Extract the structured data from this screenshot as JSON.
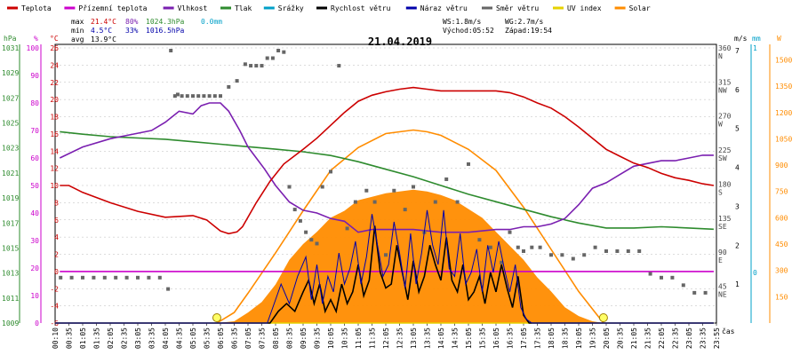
{
  "chart_data": {
    "type": "line",
    "title": "21.04.2019",
    "legend": [
      {
        "name": "Teplota",
        "color": "#cc0000"
      },
      {
        "name": "Přízemní teplota",
        "color": "#cc00cc"
      },
      {
        "name": "Vlhkost",
        "color": "#7a1fb0"
      },
      {
        "name": "Tlak",
        "color": "#2e8b2e"
      },
      {
        "name": "Srážky",
        "color": "#00a0c8"
      },
      {
        "name": "Rychlost větru",
        "color": "#000000"
      },
      {
        "name": "Náraz větru",
        "color": "#0000aa"
      },
      {
        "name": "Směr větru",
        "color": "#666666"
      },
      {
        "name": "UV index",
        "color": "#e6d200"
      },
      {
        "name": "Solar",
        "color": "#ff8c00"
      }
    ],
    "stats": {
      "max_label": "max",
      "min_label": "min",
      "avg_label": "avg",
      "max_temp": "21.4°C",
      "max_hum": "80%",
      "max_press": "1024.3hPa",
      "max_rain": "0.0mm",
      "min_temp": "4.5°C",
      "min_hum": "33%",
      "min_press": "1016.5hPa",
      "avg_temp": "13.9°C",
      "ws": "WS:1.8m/s",
      "wg": "WG:2.7m/s",
      "sunrise": "Východ:05:52",
      "sunset": "Západ:19:54"
    },
    "axes": {
      "hpa_unit": "hPa",
      "hum_unit": "%",
      "temp_unit": "°C",
      "ms_unit": "m/s",
      "mm_unit": "mm",
      "w_unit": "W",
      "x_unit": "čas",
      "hpa_ticks": [
        "1009",
        "1011",
        "1013",
        "1015",
        "1017",
        "1019",
        "1021",
        "1023",
        "1025",
        "1027",
        "1029",
        "1031"
      ],
      "hum_ticks": [
        "0",
        "10",
        "20",
        "30",
        "40",
        "50",
        "60",
        "70",
        "80",
        "90",
        "100"
      ],
      "temp_ticks": [
        "-6",
        "-4",
        "-2",
        "0",
        "2",
        "4",
        "6",
        "8",
        "10",
        "12",
        "14",
        "16",
        "18",
        "20",
        "22",
        "24",
        "26"
      ],
      "dir_ticks": [
        {
          "deg": "45",
          "dir": "NE"
        },
        {
          "deg": "90",
          "dir": "E"
        },
        {
          "deg": "135",
          "dir": "SE"
        },
        {
          "deg": "180",
          "dir": "S"
        },
        {
          "deg": "225",
          "dir": "SW"
        },
        {
          "deg": "270",
          "dir": "W"
        },
        {
          "deg": "315",
          "dir": "NW"
        },
        {
          "deg": "360",
          "dir": "N"
        }
      ],
      "ms_ticks": [
        "1",
        "2",
        "3",
        "4",
        "5",
        "6",
        "7"
      ],
      "mm_ticks": [
        "0",
        "1"
      ],
      "w_ticks": [
        "150",
        "300",
        "450",
        "600",
        "750",
        "900",
        "1050",
        "1200",
        "1350",
        "1500"
      ],
      "x_ticks": [
        "00:10",
        "00:35",
        "01:05",
        "01:35",
        "02:05",
        "02:35",
        "03:05",
        "03:35",
        "04:05",
        "04:35",
        "05:05",
        "05:35",
        "06:05",
        "06:35",
        "07:05",
        "07:35",
        "08:05",
        "08:35",
        "09:05",
        "09:35",
        "10:05",
        "10:35",
        "11:05",
        "11:35",
        "12:05",
        "12:35",
        "13:05",
        "13:35",
        "14:05",
        "14:35",
        "15:05",
        "15:35",
        "16:05",
        "16:35",
        "17:05",
        "17:35",
        "18:05",
        "18:35",
        "19:05",
        "19:35",
        "20:05",
        "20:35",
        "21:05",
        "21:35",
        "22:05",
        "22:35",
        "23:05",
        "23:35",
        "23:55"
      ]
    },
    "sun_events_h": [
      5.87,
      19.9
    ],
    "series": [
      {
        "name": "Teplota",
        "axis": "temp",
        "color": "#cc0000",
        "x": [
          0.17,
          0.5,
          1,
          2,
          3,
          4,
          5,
          5.5,
          6,
          6.3,
          6.6,
          6.8,
          7.3,
          7.8,
          8.3,
          9,
          9.5,
          10,
          10.5,
          11,
          11.5,
          12,
          12.5,
          13,
          13.5,
          14,
          15,
          16,
          16.5,
          17,
          17.5,
          18,
          18.5,
          19,
          19.5,
          20,
          20.5,
          21,
          21.5,
          22,
          22.5,
          23,
          23.5,
          23.9
        ],
        "y": [
          10,
          10,
          9.2,
          8,
          7,
          6.3,
          6.5,
          6,
          4.7,
          4.4,
          4.6,
          5.2,
          8,
          10.5,
          12.5,
          14.2,
          15.5,
          17,
          18.5,
          19.8,
          20.5,
          20.9,
          21.2,
          21.4,
          21.2,
          21,
          21,
          21,
          20.8,
          20.3,
          19.6,
          19,
          18,
          16.8,
          15.5,
          14.2,
          13.4,
          12.6,
          12.1,
          11.4,
          10.9,
          10.6,
          10.2,
          10
        ]
      },
      {
        "name": "Vlhkost",
        "axis": "hum",
        "color": "#7a1fb0",
        "x": [
          0.17,
          1,
          2,
          3,
          3.5,
          4,
          4.5,
          5,
          5.3,
          5.6,
          6,
          6.3,
          6.7,
          7,
          7.3,
          7.6,
          8,
          8.5,
          9,
          9.5,
          10,
          10.5,
          11,
          11.5,
          12,
          13,
          14,
          15,
          16,
          16.5,
          17,
          17.5,
          18,
          18.5,
          19,
          19.5,
          20,
          20.5,
          21,
          21.5,
          22,
          22.5,
          23,
          23.5,
          23.9
        ],
        "y": [
          60,
          64,
          67,
          69,
          70,
          73,
          77,
          76,
          79,
          80,
          80,
          77,
          70,
          64,
          60,
          56,
          50,
          44,
          41,
          40,
          38,
          37,
          33,
          34,
          34,
          34,
          33,
          33,
          34,
          34,
          35,
          35,
          36,
          38,
          43,
          49,
          51,
          54,
          57,
          58,
          59,
          59,
          60,
          61,
          61
        ]
      },
      {
        "name": "Tlak",
        "axis": "hpa",
        "color": "#2e8b2e",
        "x": [
          0.17,
          1,
          2,
          3,
          4,
          5,
          6,
          7,
          8,
          9,
          10,
          11,
          12,
          13,
          14,
          15,
          16,
          17,
          18,
          19,
          20,
          21,
          22,
          23,
          23.9
        ],
        "y": [
          1024.3,
          1024.1,
          1023.9,
          1023.8,
          1023.7,
          1023.5,
          1023.3,
          1023.1,
          1022.9,
          1022.7,
          1022.4,
          1021.9,
          1021.3,
          1020.7,
          1020.0,
          1019.3,
          1018.7,
          1018.1,
          1017.5,
          1017.0,
          1016.6,
          1016.6,
          1016.7,
          1016.6,
          1016.5
        ]
      },
      {
        "name": "Přízemní teplota",
        "axis": "temp",
        "color": "#cc00cc",
        "x": [
          0.17,
          23.9
        ],
        "y": [
          0,
          0
        ]
      },
      {
        "name": "Rychlost větru",
        "axis": "ms",
        "color": "#000000",
        "x": [
          0,
          7.8,
          8.1,
          8.4,
          8.7,
          9,
          9.2,
          9.4,
          9.6,
          9.8,
          10,
          10.2,
          10.4,
          10.6,
          10.8,
          11,
          11.2,
          11.4,
          11.6,
          11.8,
          12,
          12.2,
          12.4,
          12.6,
          12.8,
          13,
          13.2,
          13.4,
          13.6,
          13.8,
          14,
          14.2,
          14.4,
          14.6,
          14.8,
          15,
          15.2,
          15.4,
          15.6,
          15.8,
          16,
          16.2,
          16.4,
          16.6,
          16.8,
          17,
          17.2,
          17.4,
          23.9
        ],
        "y": [
          0,
          0,
          0.3,
          0.5,
          0.3,
          0.8,
          1.1,
          0.5,
          1.0,
          0.3,
          0.6,
          0.3,
          1.0,
          0.5,
          0.8,
          1.5,
          0.7,
          1.1,
          2.5,
          1.3,
          0.9,
          1.0,
          2.0,
          1.3,
          0.6,
          1.6,
          0.8,
          1.2,
          2.0,
          1.5,
          1.1,
          2.2,
          1.1,
          0.8,
          1.5,
          0.6,
          0.8,
          1.2,
          0.5,
          1.3,
          0.8,
          1.5,
          0.9,
          0.4,
          1.2,
          0.2,
          0,
          0,
          0
        ]
      },
      {
        "name": "Náraz větru",
        "axis": "ms",
        "color": "#0000aa",
        "x": [
          0,
          7.7,
          7.9,
          8.2,
          8.5,
          8.8,
          9.1,
          9.3,
          9.5,
          9.7,
          9.9,
          10.1,
          10.3,
          10.5,
          10.7,
          10.9,
          11.1,
          11.3,
          11.5,
          11.7,
          11.9,
          12.1,
          12.3,
          12.5,
          12.7,
          12.9,
          13.1,
          13.3,
          13.5,
          13.7,
          13.9,
          14.1,
          14.3,
          14.5,
          14.7,
          14.9,
          15.1,
          15.3,
          15.5,
          15.7,
          15.9,
          16.1,
          16.3,
          16.5,
          16.7,
          16.9,
          17.1,
          17.3,
          17.5,
          23.9
        ],
        "y": [
          0,
          0,
          0.4,
          1.0,
          0.5,
          1.2,
          1.7,
          0.6,
          1.5,
          0.5,
          1.2,
          0.8,
          1.8,
          1.0,
          1.4,
          2.1,
          1.0,
          1.7,
          2.8,
          2.0,
          1.2,
          1.5,
          2.6,
          1.8,
          0.9,
          2.3,
          1.0,
          1.8,
          2.9,
          2.0,
          1.5,
          2.9,
          1.4,
          1.2,
          2.3,
          1.0,
          1.3,
          1.9,
          0.8,
          2.0,
          1.3,
          2.1,
          1.4,
          0.8,
          1.5,
          0.4,
          0.1,
          0,
          0,
          0
        ]
      },
      {
        "name": "Směr větru",
        "axis": "dir",
        "color": "#666666",
        "style": "scatter",
        "x": [
          0.2,
          0.6,
          1.0,
          1.4,
          1.8,
          2.2,
          2.6,
          3.0,
          3.4,
          3.8,
          4.1,
          4.2,
          4.35,
          4.45,
          4.6,
          4.8,
          5.0,
          5.2,
          5.4,
          5.6,
          5.8,
          6.0,
          6.3,
          6.6,
          6.9,
          7.1,
          7.3,
          7.5,
          7.7,
          7.9,
          8.1,
          8.3,
          8.5,
          8.7,
          8.9,
          9.1,
          9.3,
          9.5,
          9.7,
          10.0,
          10.3,
          10.6,
          10.9,
          11.3,
          11.6,
          12.0,
          12.3,
          12.7,
          13.0,
          13.4,
          13.8,
          14.2,
          14.6,
          15.0,
          15.4,
          15.8,
          16.2,
          16.5,
          16.8,
          17.0,
          17.3,
          17.6,
          18.0,
          18.4,
          18.8,
          19.2,
          19.6,
          20.0,
          20.4,
          20.8,
          21.2,
          21.6,
          22.0,
          22.4,
          22.8,
          23.2,
          23.6
        ],
        "y": [
          60,
          60,
          60,
          60,
          60,
          60,
          60,
          60,
          60,
          60,
          45,
          360,
          300,
          302,
          300,
          300,
          300,
          300,
          300,
          300,
          300,
          300,
          312,
          320,
          342,
          340,
          340,
          340,
          350,
          350,
          360,
          358,
          180,
          150,
          135,
          120,
          110,
          105,
          180,
          200,
          340,
          125,
          160,
          175,
          160,
          90,
          175,
          150,
          180,
          120,
          160,
          190,
          160,
          210,
          110,
          100,
          80,
          120,
          100,
          95,
          100,
          100,
          90,
          90,
          85,
          90,
          100,
          95,
          95,
          95,
          95,
          65,
          60,
          60,
          50,
          40,
          40
        ]
      },
      {
        "name": "Solar",
        "axis": "w",
        "color": "#ff8c00",
        "style": "area",
        "x": [
          5.87,
          6.5,
          7,
          7.5,
          8,
          8.5,
          9,
          9.5,
          10,
          10.5,
          11,
          11.5,
          12,
          12.5,
          13,
          13.5,
          14,
          14.5,
          15,
          15.5,
          16,
          16.5,
          17,
          17.5,
          18,
          18.5,
          19,
          19.5,
          19.9
        ],
        "y": [
          0,
          10,
          60,
          120,
          220,
          360,
          450,
          520,
          600,
          640,
          700,
          720,
          740,
          750,
          760,
          750,
          730,
          700,
          650,
          600,
          520,
          440,
          360,
          260,
          180,
          90,
          40,
          10,
          0
        ]
      },
      {
        "name": "Solar max",
        "axis": "w",
        "color": "#ff8c00",
        "style": "line",
        "x": [
          5.87,
          6.5,
          7,
          8,
          9,
          10,
          11,
          12,
          13,
          13.5,
          14,
          15,
          16,
          17,
          18,
          19,
          19.9
        ],
        "y": [
          0,
          60,
          170,
          400,
          640,
          870,
          1000,
          1080,
          1100,
          1090,
          1070,
          990,
          870,
          660,
          420,
          180,
          0
        ]
      },
      {
        "name": "UV index",
        "axis": "uv",
        "color": "#e6d200",
        "x": [
          0,
          23.9
        ],
        "y": [
          0,
          0
        ]
      }
    ]
  }
}
